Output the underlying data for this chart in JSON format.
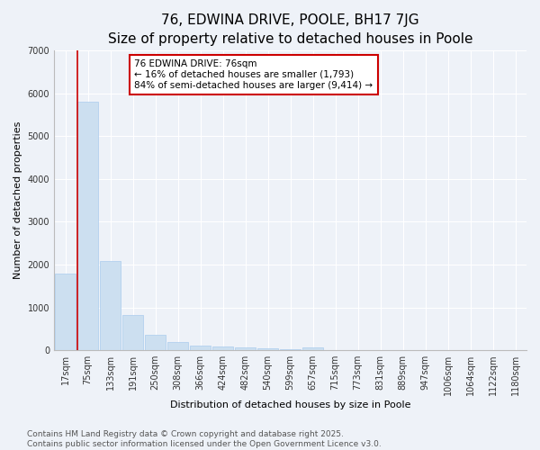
{
  "title": "76, EDWINA DRIVE, POOLE, BH17 7JG",
  "subtitle": "Size of property relative to detached houses in Poole",
  "xlabel": "Distribution of detached houses by size in Poole",
  "ylabel": "Number of detached properties",
  "categories": [
    "17sqm",
    "75sqm",
    "133sqm",
    "191sqm",
    "250sqm",
    "308sqm",
    "366sqm",
    "424sqm",
    "482sqm",
    "540sqm",
    "599sqm",
    "657sqm",
    "715sqm",
    "773sqm",
    "831sqm",
    "889sqm",
    "947sqm",
    "1006sqm",
    "1064sqm",
    "1122sqm",
    "1180sqm"
  ],
  "values": [
    1793,
    5800,
    2080,
    820,
    360,
    200,
    110,
    80,
    60,
    50,
    30,
    60,
    10,
    0,
    0,
    0,
    0,
    0,
    0,
    0,
    0
  ],
  "highlight_index": 1,
  "bar_color": "#ccdff0",
  "bar_edge_color": "#aaccee",
  "highlight_line_color": "#cc0000",
  "annotation_line1": "76 EDWINA DRIVE: 76sqm",
  "annotation_line2": "← 16% of detached houses are smaller (1,793)",
  "annotation_line3": "84% of semi-detached houses are larger (9,414) →",
  "annotation_box_color": "#ffffff",
  "annotation_box_edge": "#cc0000",
  "ylim": [
    0,
    7000
  ],
  "footer_line1": "Contains HM Land Registry data © Crown copyright and database right 2025.",
  "footer_line2": "Contains public sector information licensed under the Open Government Licence v3.0.",
  "background_color": "#eef2f8",
  "grid_color": "#ffffff",
  "title_fontsize": 11,
  "subtitle_fontsize": 9,
  "axis_label_fontsize": 8,
  "tick_fontsize": 7,
  "annotation_fontsize": 7.5,
  "footer_fontsize": 6.5
}
